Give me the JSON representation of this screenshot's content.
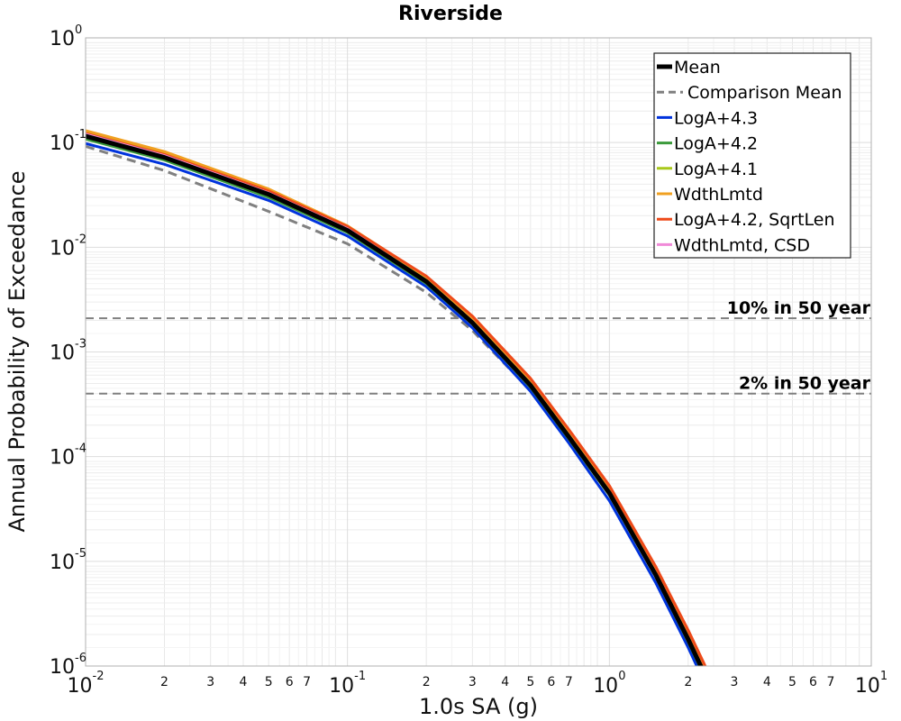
{
  "chart_data": {
    "type": "line",
    "title": "Riverside",
    "xlabel": "1.0s SA (g)",
    "ylabel": "Annual Probability of Exceedance",
    "xscale": "log",
    "yscale": "log",
    "xlim": [
      0.01,
      10
    ],
    "ylim": [
      1e-06,
      1
    ],
    "grid": true,
    "legend_position": "top-right",
    "x_major_ticks": [
      {
        "value": 0.01,
        "base": "10",
        "exp": "-2"
      },
      {
        "value": 0.1,
        "base": "10",
        "exp": "-1"
      },
      {
        "value": 1,
        "base": "10",
        "exp": "0"
      },
      {
        "value": 10,
        "base": "10",
        "exp": "1"
      }
    ],
    "x_minor_tick_labels": [
      "2",
      "3",
      "4",
      "5",
      "6",
      "7"
    ],
    "y_major_ticks": [
      {
        "value": 1,
        "base": "10",
        "exp": "0"
      },
      {
        "value": 0.1,
        "base": "10",
        "exp": "-1"
      },
      {
        "value": 0.01,
        "base": "10",
        "exp": "-2"
      },
      {
        "value": 0.001,
        "base": "10",
        "exp": "-3"
      },
      {
        "value": 0.0001,
        "base": "10",
        "exp": "-4"
      },
      {
        "value": 1e-05,
        "base": "10",
        "exp": "-5"
      },
      {
        "value": 1e-06,
        "base": "10",
        "exp": "-6"
      }
    ],
    "reference_lines": [
      {
        "label": "10% in 50 year",
        "y": 0.0021,
        "color": "#808080"
      },
      {
        "label": "2% in 50 year",
        "y": 0.0004,
        "color": "#808080"
      }
    ],
    "x": [
      0.01,
      0.02,
      0.05,
      0.1,
      0.2,
      0.3,
      0.5,
      0.7,
      1.0,
      1.5,
      2.0,
      2.5
    ],
    "series": [
      {
        "name": "Mean",
        "color": "#000000",
        "dash": "solid",
        "width": 5,
        "values": [
          0.115,
          0.072,
          0.032,
          0.0145,
          0.0047,
          0.0019,
          0.00048,
          0.000155,
          4.5e-05,
          7.5e-06,
          1.8e-06,
          5.5e-07
        ]
      },
      {
        "name": "Comparison Mean",
        "color": "#808080",
        "dash": "dashed",
        "width": 3,
        "values": [
          0.092,
          0.054,
          0.022,
          0.0108,
          0.0037,
          0.0016,
          0.00043,
          0.000145,
          4.3e-05,
          7.2e-06,
          1.7e-06,
          5e-07
        ]
      },
      {
        "name": "LogA+4.3",
        "color": "#0033dd",
        "dash": "solid",
        "width": 3,
        "values": [
          0.098,
          0.062,
          0.028,
          0.0128,
          0.0042,
          0.0017,
          0.00042,
          0.000135,
          3.8e-05,
          6.3e-06,
          1.5e-06,
          4.5e-07
        ]
      },
      {
        "name": "LogA+4.2",
        "color": "#3a9a3a",
        "dash": "solid",
        "width": 3,
        "values": [
          0.108,
          0.068,
          0.03,
          0.0138,
          0.0045,
          0.00185,
          0.00046,
          0.000148,
          4.3e-05,
          7.2e-06,
          1.7e-06,
          5.2e-07
        ]
      },
      {
        "name": "LogA+4.1",
        "color": "#a8c81a",
        "dash": "solid",
        "width": 3,
        "values": [
          0.125,
          0.078,
          0.034,
          0.0152,
          0.0049,
          0.002,
          0.0005,
          0.000162,
          4.7e-05,
          7.9e-06,
          1.9e-06,
          5.8e-07
        ]
      },
      {
        "name": "WdthLmtd",
        "color": "#f0a020",
        "dash": "solid",
        "width": 3,
        "values": [
          0.13,
          0.082,
          0.036,
          0.016,
          0.0052,
          0.0021,
          0.00053,
          0.000172,
          5e-05,
          8.4e-06,
          2e-06,
          6.2e-07
        ]
      },
      {
        "name": "LogA+4.2, SqrtLen",
        "color": "#ee4a1a",
        "dash": "solid",
        "width": 3,
        "values": [
          0.122,
          0.077,
          0.0345,
          0.0158,
          0.0053,
          0.0022,
          0.00056,
          0.000182,
          5.3e-05,
          9e-06,
          2.2e-06,
          6.8e-07
        ]
      },
      {
        "name": "WdthLmtd, CSD",
        "color": "#f08ad8",
        "dash": "solid",
        "width": 3,
        "values": [
          0.12,
          0.075,
          0.033,
          0.015,
          0.0048,
          0.00195,
          0.00049,
          0.000158,
          4.6e-05,
          7.7e-06,
          1.8e-06,
          5.6e-07
        ]
      }
    ]
  }
}
